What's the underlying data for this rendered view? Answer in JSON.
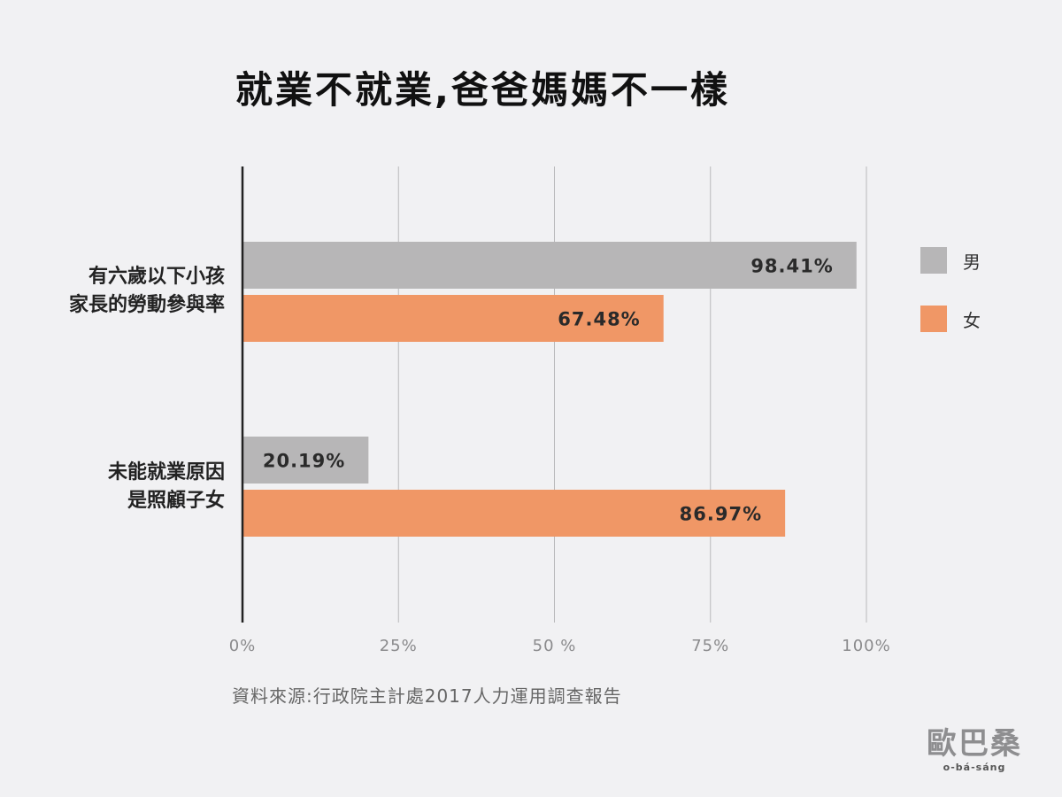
{
  "chart_data": {
    "type": "bar",
    "orientation": "horizontal",
    "title": "就業不就業,爸爸媽媽不一樣",
    "categories": [
      [
        "有六歲以下小孩",
        "家長的勞動參與率"
      ],
      [
        "未能就業原因",
        "是照顧子女"
      ]
    ],
    "series": [
      {
        "name": "男",
        "color": "#b7b6b7",
        "values": [
          98.41,
          20.19
        ],
        "labels": [
          "98.41%",
          "20.19%"
        ]
      },
      {
        "name": "女",
        "color": "#f09766",
        "values": [
          67.48,
          86.97
        ],
        "labels": [
          "67.48%",
          "86.97%"
        ]
      }
    ],
    "xlim": [
      0,
      100
    ],
    "xticks": [
      0,
      25,
      50,
      75,
      100
    ],
    "xtick_labels": [
      "0%",
      "25%",
      "50 %",
      "75%",
      "100%"
    ],
    "grid": true,
    "legend_position": "right"
  },
  "source": "資料來源:行政院主計處2017人力運用調查報告",
  "logo": {
    "mark": "歐巴桑",
    "subtitle": "o-bá-sáng"
  }
}
